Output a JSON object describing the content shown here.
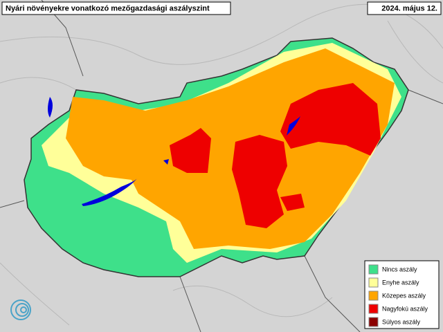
{
  "header": {
    "title": "Nyári növényekre vonatkozó mezőgazdasági aszályszint",
    "date": "2024. május 12."
  },
  "legend": [
    {
      "label": "Nincs aszály",
      "color": "#3ee08a"
    },
    {
      "label": "Enyhe aszály",
      "color": "#ffff99"
    },
    {
      "label": "Közepes aszály",
      "color": "#ffa500"
    },
    {
      "label": "Nagyfokú aszály",
      "color": "#ee0000"
    },
    {
      "label": "Súlyos aszály",
      "color": "#8b0000"
    }
  ]
}
